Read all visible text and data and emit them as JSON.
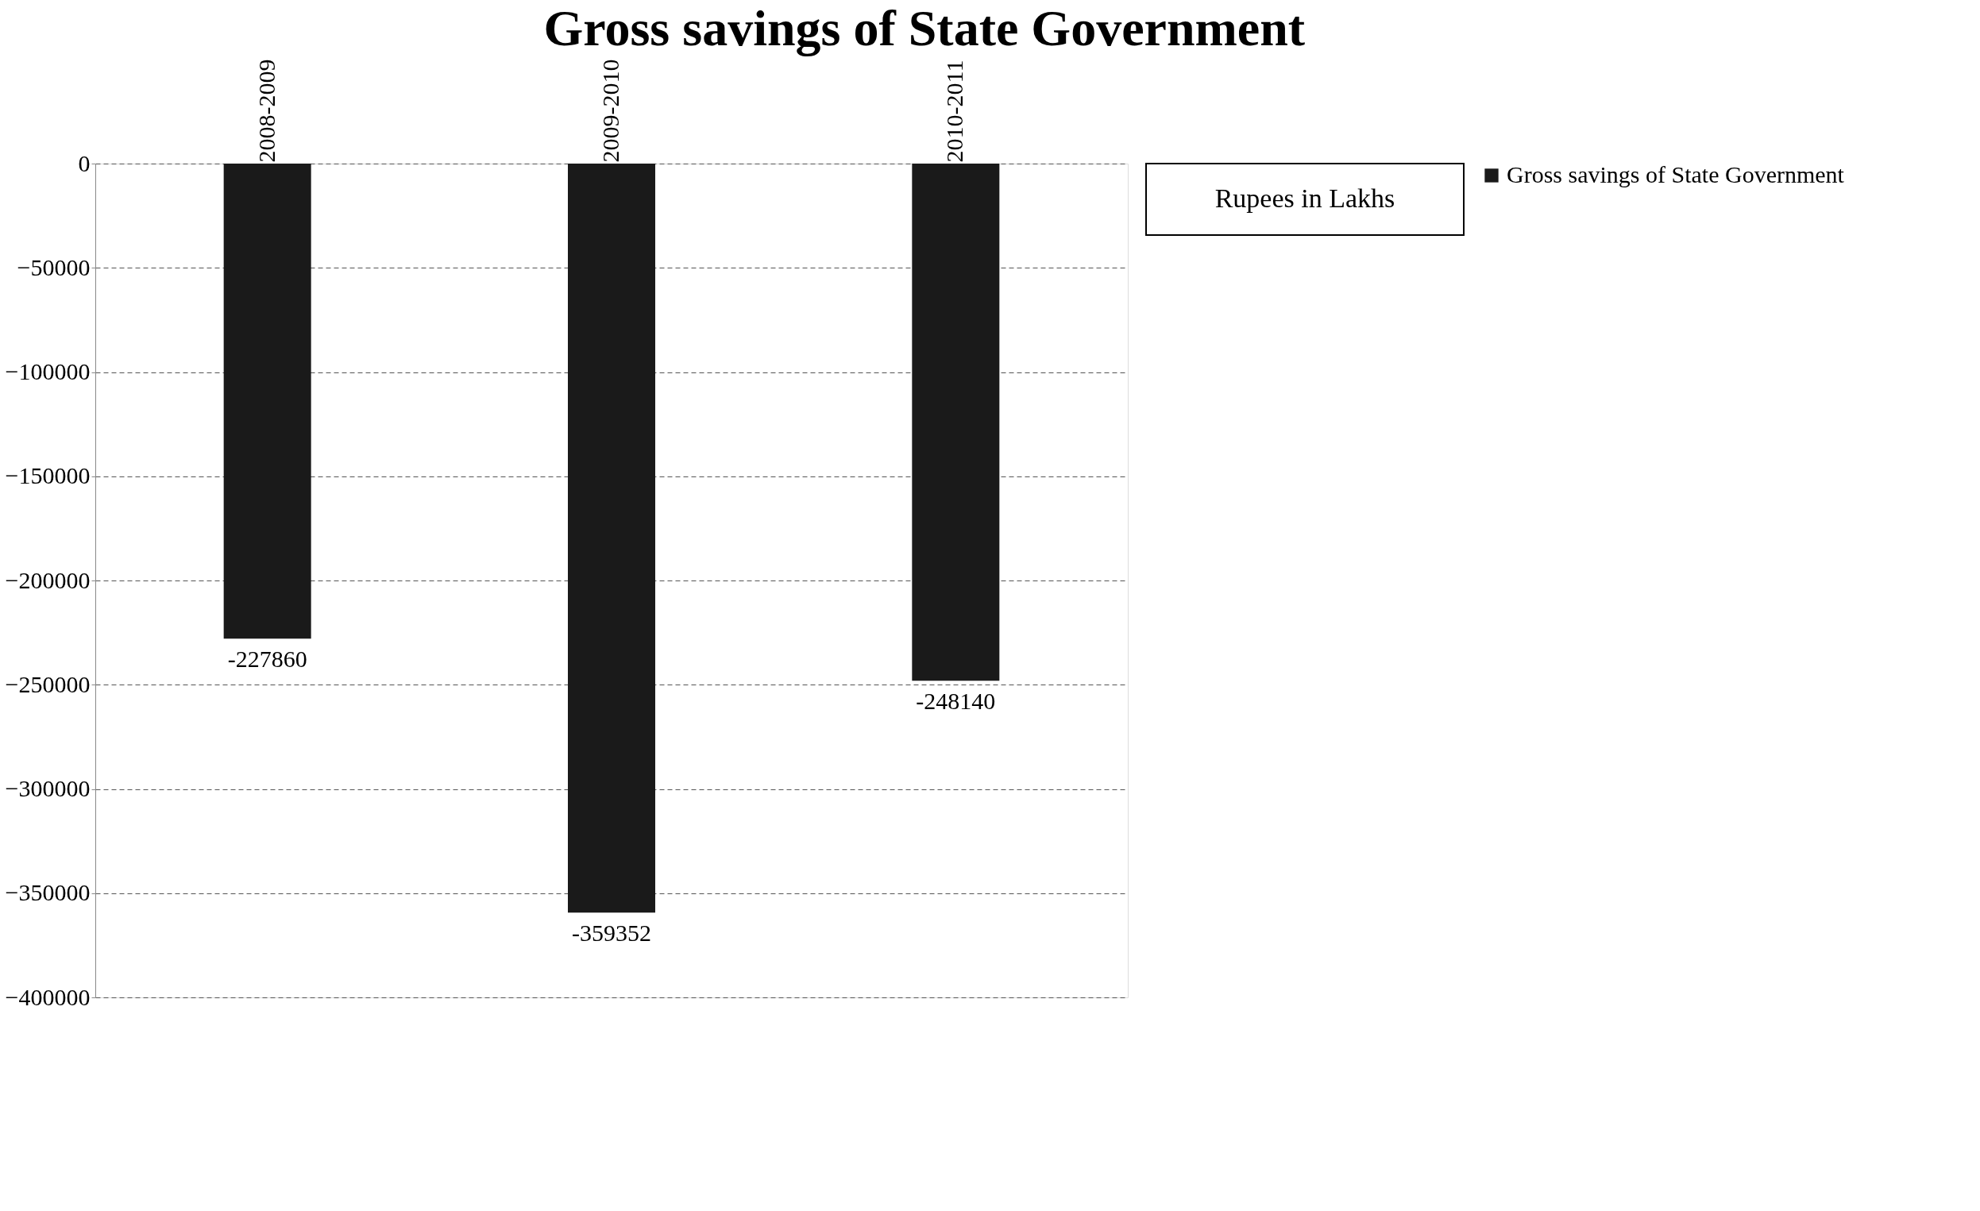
{
  "chart_data": {
    "type": "bar",
    "title": "Gross savings of State Government",
    "categories": [
      "2008-2009",
      "2009-2010",
      "2010-2011"
    ],
    "series": [
      {
        "name": "Gross savings of State Government",
        "color": "#1a1a1a",
        "values": [
          -227860,
          -359352,
          -248140
        ]
      }
    ],
    "ylim": [
      -400000,
      0
    ],
    "yticks": [
      0,
      -50000,
      -100000,
      -150000,
      -200000,
      -250000,
      -300000,
      -350000,
      -400000
    ],
    "grid": "y",
    "legend": "right",
    "data_labels": true,
    "annotations": [
      "Rupees in Lakhs"
    ]
  }
}
